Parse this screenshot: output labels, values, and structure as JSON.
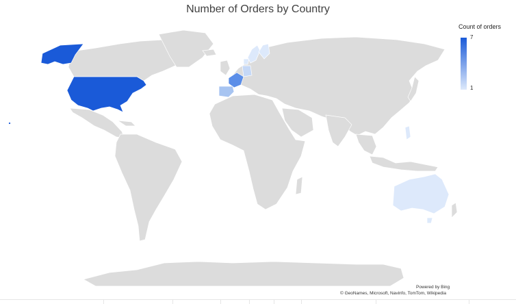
{
  "chart_data": {
    "type": "choropleth",
    "title": "Number of Orders by Country",
    "legend": {
      "title": "Count of orders",
      "max": "7",
      "min": "1",
      "placement": "top-right"
    },
    "regions": [
      {
        "country": "United States",
        "value": 7
      },
      {
        "country": "France",
        "value": 5
      },
      {
        "country": "Spain",
        "value": 3
      },
      {
        "country": "Germany",
        "value": 2
      },
      {
        "country": "Sweden",
        "value": 1
      },
      {
        "country": "Finland",
        "value": 1
      },
      {
        "country": "Denmark",
        "value": 1
      },
      {
        "country": "Australia",
        "value": 1
      },
      {
        "country": "Philippines",
        "value": 1
      }
    ]
  },
  "attribution": {
    "powered": "Powered by Bing",
    "credits": "© GeoNames, Microsoft, Navinfo, TomTom, Wikipedia"
  },
  "colors": {
    "land": "#dcdcdc",
    "high": "#1a5ad8",
    "mid": "#5b8ee8",
    "low": "#dde9fb",
    "border": "#ffffff"
  }
}
